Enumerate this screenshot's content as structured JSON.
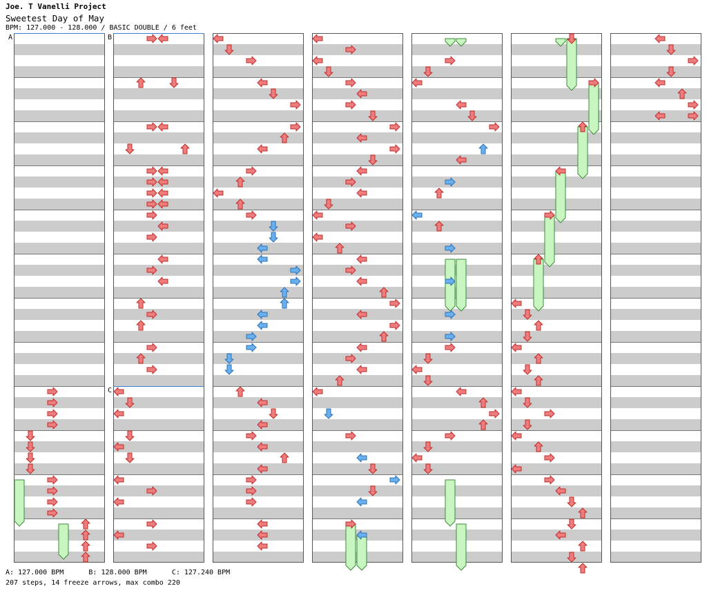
{
  "header": {
    "artist": "Joe. T Vanelli Project",
    "title": "Sweetest Day of May",
    "info": "BPM: 127.000 - 128.000 / BASIC DOUBLE / 6 feet"
  },
  "footer": {
    "bpm_line": "A: 127.000 BPM      B: 128.000 BPM      C: 127.240 BPM",
    "stats_line": "207 steps, 14 freeze arrows, max combo 220"
  },
  "bpm_markers": [
    {
      "label": "A",
      "column": 0,
      "row": 0
    },
    {
      "label": "B",
      "column": 1,
      "row": 0
    },
    {
      "label": "C",
      "column": 1,
      "row": 64
    }
  ],
  "colors": {
    "arrow_red": "#ef7c7c",
    "arrow_blue": "#6ab0ee",
    "freeze_green": "#c8f5c0",
    "stripe_gray": "#cccccc",
    "bpm_line_blue": "#3a7fd5"
  },
  "chart_data": {
    "type": "step-chart",
    "columns": 7,
    "rows_per_column": 96,
    "lanes": [
      "P1-left",
      "P1-down",
      "P1-up",
      "P1-right",
      "P2-left",
      "P2-down",
      "P2-up",
      "P2-right"
    ],
    "notes": [
      {
        "c": 0,
        "r": 64,
        "l": 3
      },
      {
        "c": 0,
        "r": 66,
        "l": 3
      },
      {
        "c": 0,
        "r": 68,
        "l": 3
      },
      {
        "c": 0,
        "r": 70,
        "l": 3
      },
      {
        "c": 0,
        "r": 72,
        "l": 1
      },
      {
        "c": 0,
        "r": 74,
        "l": 1
      },
      {
        "c": 0,
        "r": 76,
        "l": 1
      },
      {
        "c": 0,
        "r": 78,
        "l": 1
      },
      {
        "c": 0,
        "r": 80,
        "l": 3
      },
      {
        "c": 0,
        "r": 82,
        "l": 3
      },
      {
        "c": 0,
        "r": 84,
        "l": 3
      },
      {
        "c": 0,
        "r": 86,
        "l": 3
      },
      {
        "c": 0,
        "r": 88,
        "l": 6
      },
      {
        "c": 0,
        "r": 90,
        "l": 6
      },
      {
        "c": 0,
        "r": 92,
        "l": 6
      },
      {
        "c": 0,
        "r": 94,
        "l": 6
      },
      {
        "c": 1,
        "r": 0,
        "l": 3
      },
      {
        "c": 1,
        "r": 0,
        "l": 4
      },
      {
        "c": 1,
        "r": 8,
        "l": 2
      },
      {
        "c": 1,
        "r": 8,
        "l": 5
      },
      {
        "c": 1,
        "r": 16,
        "l": 3
      },
      {
        "c": 1,
        "r": 16,
        "l": 4
      },
      {
        "c": 1,
        "r": 20,
        "l": 1
      },
      {
        "c": 1,
        "r": 20,
        "l": 6
      },
      {
        "c": 1,
        "r": 24,
        "l": 3
      },
      {
        "c": 1,
        "r": 24,
        "l": 4
      },
      {
        "c": 1,
        "r": 26,
        "l": 3
      },
      {
        "c": 1,
        "r": 26,
        "l": 4
      },
      {
        "c": 1,
        "r": 28,
        "l": 3
      },
      {
        "c": 1,
        "r": 28,
        "l": 4
      },
      {
        "c": 1,
        "r": 30,
        "l": 3
      },
      {
        "c": 1,
        "r": 30,
        "l": 4
      },
      {
        "c": 1,
        "r": 32,
        "l": 3
      },
      {
        "c": 1,
        "r": 34,
        "l": 4
      },
      {
        "c": 1,
        "r": 36,
        "l": 3
      },
      {
        "c": 1,
        "r": 40,
        "l": 4
      },
      {
        "c": 1,
        "r": 42,
        "l": 3
      },
      {
        "c": 1,
        "r": 44,
        "l": 4
      },
      {
        "c": 1,
        "r": 48,
        "l": 2
      },
      {
        "c": 1,
        "r": 50,
        "l": 3
      },
      {
        "c": 1,
        "r": 52,
        "l": 2
      },
      {
        "c": 1,
        "r": 56,
        "l": 3
      },
      {
        "c": 1,
        "r": 58,
        "l": 2
      },
      {
        "c": 1,
        "r": 60,
        "l": 3
      },
      {
        "c": 1,
        "r": 64,
        "l": 0
      },
      {
        "c": 1,
        "r": 66,
        "l": 1
      },
      {
        "c": 1,
        "r": 68,
        "l": 0
      },
      {
        "c": 1,
        "r": 72,
        "l": 1
      },
      {
        "c": 1,
        "r": 74,
        "l": 0
      },
      {
        "c": 1,
        "r": 76,
        "l": 1
      },
      {
        "c": 1,
        "r": 80,
        "l": 0
      },
      {
        "c": 1,
        "r": 82,
        "l": 3
      },
      {
        "c": 1,
        "r": 84,
        "l": 0
      },
      {
        "c": 1,
        "r": 88,
        "l": 3
      },
      {
        "c": 1,
        "r": 90,
        "l": 0
      },
      {
        "c": 1,
        "r": 92,
        "l": 3
      },
      {
        "c": 2,
        "r": 0,
        "l": 0
      },
      {
        "c": 2,
        "r": 2,
        "l": 1
      },
      {
        "c": 2,
        "r": 4,
        "l": 3
      },
      {
        "c": 2,
        "r": 8,
        "l": 4
      },
      {
        "c": 2,
        "r": 10,
        "l": 5
      },
      {
        "c": 2,
        "r": 12,
        "l": 7
      },
      {
        "c": 2,
        "r": 16,
        "l": 7
      },
      {
        "c": 2,
        "r": 18,
        "l": 6
      },
      {
        "c": 2,
        "r": 20,
        "l": 4
      },
      {
        "c": 2,
        "r": 24,
        "l": 3
      },
      {
        "c": 2,
        "r": 26,
        "l": 2
      },
      {
        "c": 2,
        "r": 28,
        "l": 0
      },
      {
        "c": 2,
        "r": 30,
        "l": 2
      },
      {
        "c": 2,
        "r": 32,
        "l": 3
      },
      {
        "c": 2,
        "r": 34,
        "l": 5,
        "b": 1
      },
      {
        "c": 2,
        "r": 36,
        "l": 5,
        "b": 1
      },
      {
        "c": 2,
        "r": 38,
        "l": 4,
        "b": 1
      },
      {
        "c": 2,
        "r": 40,
        "l": 4,
        "b": 1
      },
      {
        "c": 2,
        "r": 42,
        "l": 7,
        "b": 1
      },
      {
        "c": 2,
        "r": 44,
        "l": 7,
        "b": 1
      },
      {
        "c": 2,
        "r": 46,
        "l": 6,
        "b": 1
      },
      {
        "c": 2,
        "r": 48,
        "l": 6,
        "b": 1
      },
      {
        "c": 2,
        "r": 50,
        "l": 4,
        "b": 1
      },
      {
        "c": 2,
        "r": 52,
        "l": 4,
        "b": 1
      },
      {
        "c": 2,
        "r": 54,
        "l": 3,
        "b": 1
      },
      {
        "c": 2,
        "r": 56,
        "l": 3,
        "b": 1
      },
      {
        "c": 2,
        "r": 58,
        "l": 1,
        "b": 1
      },
      {
        "c": 2,
        "r": 60,
        "l": 1,
        "b": 1
      },
      {
        "c": 2,
        "r": 64,
        "l": 2
      },
      {
        "c": 2,
        "r": 66,
        "l": 4
      },
      {
        "c": 2,
        "r": 68,
        "l": 5
      },
      {
        "c": 2,
        "r": 70,
        "l": 4
      },
      {
        "c": 2,
        "r": 72,
        "l": 3
      },
      {
        "c": 2,
        "r": 74,
        "l": 4
      },
      {
        "c": 2,
        "r": 76,
        "l": 6
      },
      {
        "c": 2,
        "r": 78,
        "l": 4
      },
      {
        "c": 2,
        "r": 80,
        "l": 3
      },
      {
        "c": 2,
        "r": 82,
        "l": 3
      },
      {
        "c": 2,
        "r": 84,
        "l": 3
      },
      {
        "c": 2,
        "r": 88,
        "l": 4
      },
      {
        "c": 2,
        "r": 90,
        "l": 4
      },
      {
        "c": 2,
        "r": 92,
        "l": 4
      },
      {
        "c": 3,
        "r": 0,
        "l": 0
      },
      {
        "c": 3,
        "r": 2,
        "l": 3
      },
      {
        "c": 3,
        "r": 4,
        "l": 0
      },
      {
        "c": 3,
        "r": 6,
        "l": 1
      },
      {
        "c": 3,
        "r": 8,
        "l": 3
      },
      {
        "c": 3,
        "r": 10,
        "l": 4
      },
      {
        "c": 3,
        "r": 12,
        "l": 3
      },
      {
        "c": 3,
        "r": 14,
        "l": 5
      },
      {
        "c": 3,
        "r": 16,
        "l": 7
      },
      {
        "c": 3,
        "r": 18,
        "l": 4
      },
      {
        "c": 3,
        "r": 20,
        "l": 7
      },
      {
        "c": 3,
        "r": 22,
        "l": 5
      },
      {
        "c": 3,
        "r": 24,
        "l": 4
      },
      {
        "c": 3,
        "r": 26,
        "l": 3
      },
      {
        "c": 3,
        "r": 28,
        "l": 4
      },
      {
        "c": 3,
        "r": 30,
        "l": 1
      },
      {
        "c": 3,
        "r": 32,
        "l": 0
      },
      {
        "c": 3,
        "r": 34,
        "l": 3
      },
      {
        "c": 3,
        "r": 36,
        "l": 0
      },
      {
        "c": 3,
        "r": 38,
        "l": 2
      },
      {
        "c": 3,
        "r": 40,
        "l": 4
      },
      {
        "c": 3,
        "r": 42,
        "l": 3
      },
      {
        "c": 3,
        "r": 44,
        "l": 4
      },
      {
        "c": 3,
        "r": 46,
        "l": 6
      },
      {
        "c": 3,
        "r": 48,
        "l": 7
      },
      {
        "c": 3,
        "r": 50,
        "l": 4
      },
      {
        "c": 3,
        "r": 52,
        "l": 7
      },
      {
        "c": 3,
        "r": 54,
        "l": 6
      },
      {
        "c": 3,
        "r": 56,
        "l": 4
      },
      {
        "c": 3,
        "r": 58,
        "l": 3
      },
      {
        "c": 3,
        "r": 60,
        "l": 4
      },
      {
        "c": 3,
        "r": 62,
        "l": 2
      },
      {
        "c": 3,
        "r": 64,
        "l": 0
      },
      {
        "c": 3,
        "r": 68,
        "l": 1,
        "b": 1
      },
      {
        "c": 3,
        "r": 72,
        "l": 3
      },
      {
        "c": 3,
        "r": 76,
        "l": 4,
        "b": 1
      },
      {
        "c": 3,
        "r": 78,
        "l": 5
      },
      {
        "c": 3,
        "r": 80,
        "l": 7,
        "b": 1
      },
      {
        "c": 3,
        "r": 82,
        "l": 5
      },
      {
        "c": 3,
        "r": 84,
        "l": 4,
        "b": 1
      },
      {
        "c": 3,
        "r": 88,
        "l": 3
      },
      {
        "c": 3,
        "r": 90,
        "l": 4,
        "b": 1
      },
      {
        "c": 4,
        "r": 4,
        "l": 3
      },
      {
        "c": 4,
        "r": 6,
        "l": 1
      },
      {
        "c": 4,
        "r": 8,
        "l": 0
      },
      {
        "c": 4,
        "r": 12,
        "l": 4
      },
      {
        "c": 4,
        "r": 14,
        "l": 5
      },
      {
        "c": 4,
        "r": 16,
        "l": 7
      },
      {
        "c": 4,
        "r": 20,
        "l": 6,
        "b": 1
      },
      {
        "c": 4,
        "r": 22,
        "l": 4
      },
      {
        "c": 4,
        "r": 26,
        "l": 3,
        "b": 1
      },
      {
        "c": 4,
        "r": 28,
        "l": 2
      },
      {
        "c": 4,
        "r": 32,
        "l": 0,
        "b": 1
      },
      {
        "c": 4,
        "r": 34,
        "l": 2
      },
      {
        "c": 4,
        "r": 38,
        "l": 3,
        "b": 1
      },
      {
        "c": 4,
        "r": 44,
        "l": 3,
        "b": 1
      },
      {
        "c": 4,
        "r": 50,
        "l": 3,
        "b": 1
      },
      {
        "c": 4,
        "r": 54,
        "l": 3,
        "b": 1
      },
      {
        "c": 4,
        "r": 56,
        "l": 3
      },
      {
        "c": 4,
        "r": 58,
        "l": 1
      },
      {
        "c": 4,
        "r": 60,
        "l": 0
      },
      {
        "c": 4,
        "r": 62,
        "l": 1
      },
      {
        "c": 4,
        "r": 64,
        "l": 4
      },
      {
        "c": 4,
        "r": 66,
        "l": 6
      },
      {
        "c": 4,
        "r": 68,
        "l": 7
      },
      {
        "c": 4,
        "r": 70,
        "l": 6
      },
      {
        "c": 4,
        "r": 72,
        "l": 3
      },
      {
        "c": 4,
        "r": 74,
        "l": 1
      },
      {
        "c": 4,
        "r": 76,
        "l": 0
      },
      {
        "c": 4,
        "r": 78,
        "l": 1
      },
      {
        "c": 5,
        "r": 0,
        "l": 5
      },
      {
        "c": 5,
        "r": 8,
        "l": 7
      },
      {
        "c": 5,
        "r": 16,
        "l": 6
      },
      {
        "c": 5,
        "r": 24,
        "l": 4
      },
      {
        "c": 5,
        "r": 32,
        "l": 3
      },
      {
        "c": 5,
        "r": 40,
        "l": 2
      },
      {
        "c": 5,
        "r": 48,
        "l": 0
      },
      {
        "c": 5,
        "r": 50,
        "l": 1
      },
      {
        "c": 5,
        "r": 52,
        "l": 2
      },
      {
        "c": 5,
        "r": 54,
        "l": 1
      },
      {
        "c": 5,
        "r": 56,
        "l": 0
      },
      {
        "c": 5,
        "r": 58,
        "l": 2
      },
      {
        "c": 5,
        "r": 60,
        "l": 1
      },
      {
        "c": 5,
        "r": 62,
        "l": 2
      },
      {
        "c": 5,
        "r": 64,
        "l": 0
      },
      {
        "c": 5,
        "r": 66,
        "l": 1
      },
      {
        "c": 5,
        "r": 68,
        "l": 3
      },
      {
        "c": 5,
        "r": 70,
        "l": 1
      },
      {
        "c": 5,
        "r": 72,
        "l": 0
      },
      {
        "c": 5,
        "r": 74,
        "l": 2
      },
      {
        "c": 5,
        "r": 76,
        "l": 3
      },
      {
        "c": 5,
        "r": 78,
        "l": 0
      },
      {
        "c": 5,
        "r": 80,
        "l": 3
      },
      {
        "c": 5,
        "r": 82,
        "l": 4
      },
      {
        "c": 5,
        "r": 84,
        "l": 5
      },
      {
        "c": 5,
        "r": 86,
        "l": 6
      },
      {
        "c": 5,
        "r": 88,
        "l": 5
      },
      {
        "c": 5,
        "r": 90,
        "l": 4
      },
      {
        "c": 5,
        "r": 92,
        "l": 6
      },
      {
        "c": 5,
        "r": 94,
        "l": 5
      },
      {
        "c": 5,
        "r": 96,
        "l": 6
      },
      {
        "c": 5,
        "r": 98,
        "l": 5
      },
      {
        "c": 5,
        "r": 100,
        "l": 6
      },
      {
        "c": 6,
        "r": 0,
        "l": 4
      },
      {
        "c": 6,
        "r": 2,
        "l": 5
      },
      {
        "c": 6,
        "r": 4,
        "l": 7
      },
      {
        "c": 6,
        "r": 6,
        "l": 5
      },
      {
        "c": 6,
        "r": 8,
        "l": 4
      },
      {
        "c": 6,
        "r": 10,
        "l": 6
      },
      {
        "c": 6,
        "r": 12,
        "l": 7
      },
      {
        "c": 6,
        "r": 14,
        "l": 4
      },
      {
        "c": 6,
        "r": 14,
        "l": 7
      }
    ],
    "freezes": [
      {
        "c": 0,
        "r1": 80,
        "r2": 88,
        "l": 0
      },
      {
        "c": 0,
        "r1": 88,
        "r2": 94,
        "l": 4
      },
      {
        "c": 3,
        "r1": 88,
        "r2": 96,
        "l": 3
      },
      {
        "c": 3,
        "r1": 90,
        "r2": 96,
        "l": 4
      },
      {
        "c": 4,
        "r1": 0,
        "r2": 1,
        "l": 3
      },
      {
        "c": 4,
        "r1": 0,
        "r2": 1,
        "l": 4
      },
      {
        "c": 4,
        "r1": 40,
        "r2": 49,
        "l": 3
      },
      {
        "c": 4,
        "r1": 40,
        "r2": 49,
        "l": 4
      },
      {
        "c": 4,
        "r1": 80,
        "r2": 88,
        "l": 3
      },
      {
        "c": 4,
        "r1": 88,
        "r2": 96,
        "l": 4
      },
      {
        "c": 5,
        "r1": 0,
        "r2": 1,
        "l": 4
      },
      {
        "c": 5,
        "r1": 0,
        "r2": 9,
        "l": 5
      },
      {
        "c": 5,
        "r1": 8,
        "r2": 17,
        "l": 7
      },
      {
        "c": 5,
        "r1": 16,
        "r2": 25,
        "l": 6
      },
      {
        "c": 5,
        "r1": 24,
        "r2": 33,
        "l": 4
      },
      {
        "c": 5,
        "r1": 32,
        "r2": 41,
        "l": 3
      },
      {
        "c": 5,
        "r1": 40,
        "r2": 49,
        "l": 2
      }
    ]
  }
}
